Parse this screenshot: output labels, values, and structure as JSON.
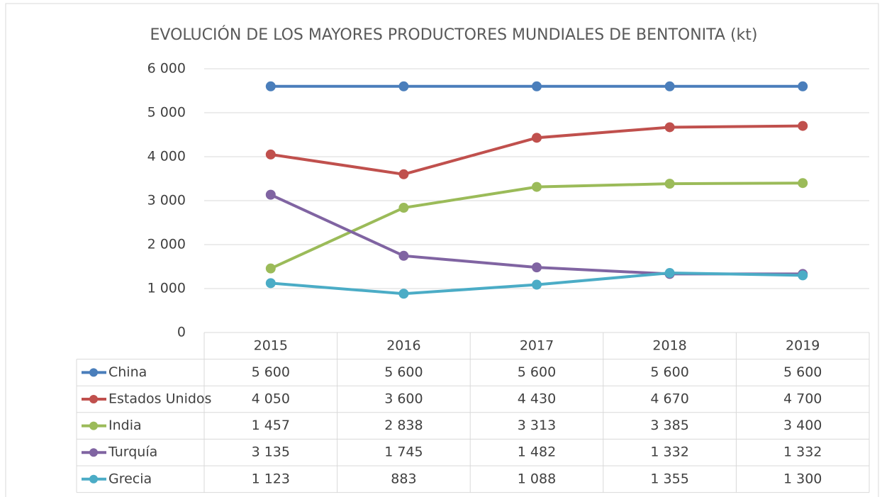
{
  "chart_data": {
    "type": "line",
    "title": "EVOLUCIÓN DE LOS MAYORES PRODUCTORES MUNDIALES DE BENTONITA (kt)",
    "categories": [
      "2015",
      "2016",
      "2017",
      "2018",
      "2019"
    ],
    "series": [
      {
        "name": "China",
        "color": "#4a7ebb",
        "values": [
          5600,
          5600,
          5600,
          5600,
          5600
        ],
        "value_labels": [
          "5 600",
          "5 600",
          "5 600",
          "5 600",
          "5 600"
        ]
      },
      {
        "name": "Estados Unidos",
        "color": "#c0504d",
        "values": [
          4050,
          3600,
          4430,
          4670,
          4700
        ],
        "value_labels": [
          "4 050",
          "3 600",
          "4 430",
          "4 670",
          "4 700"
        ]
      },
      {
        "name": "India",
        "color": "#9bbb59",
        "values": [
          1457,
          2838,
          3313,
          3385,
          3400
        ],
        "value_labels": [
          "1 457",
          "2 838",
          "3 313",
          "3 385",
          "3 400"
        ]
      },
      {
        "name": "Turquía",
        "color": "#8064a2",
        "values": [
          3135,
          1745,
          1482,
          1332,
          1332
        ],
        "value_labels": [
          "3 135",
          "1 745",
          "1 482",
          "1 332",
          "1 332"
        ]
      },
      {
        "name": "Grecia",
        "color": "#4bacc6",
        "values": [
          1123,
          883,
          1088,
          1355,
          1300
        ],
        "value_labels": [
          "1 123",
          "883",
          "1 088",
          "1 355",
          "1 300"
        ]
      }
    ],
    "ylim": [
      0,
      6000
    ],
    "yticks": [
      0,
      {
        "value": 1000,
        "label": "1 000"
      },
      {
        "value": 2000,
        "label": "2 000"
      },
      {
        "value": 3000,
        "label": "3 000"
      },
      {
        "value": 4000,
        "label": "4 000"
      },
      {
        "value": 5000,
        "label": "5 000"
      },
      {
        "value": 6000,
        "label": "6 000"
      }
    ],
    "grid": true
  }
}
